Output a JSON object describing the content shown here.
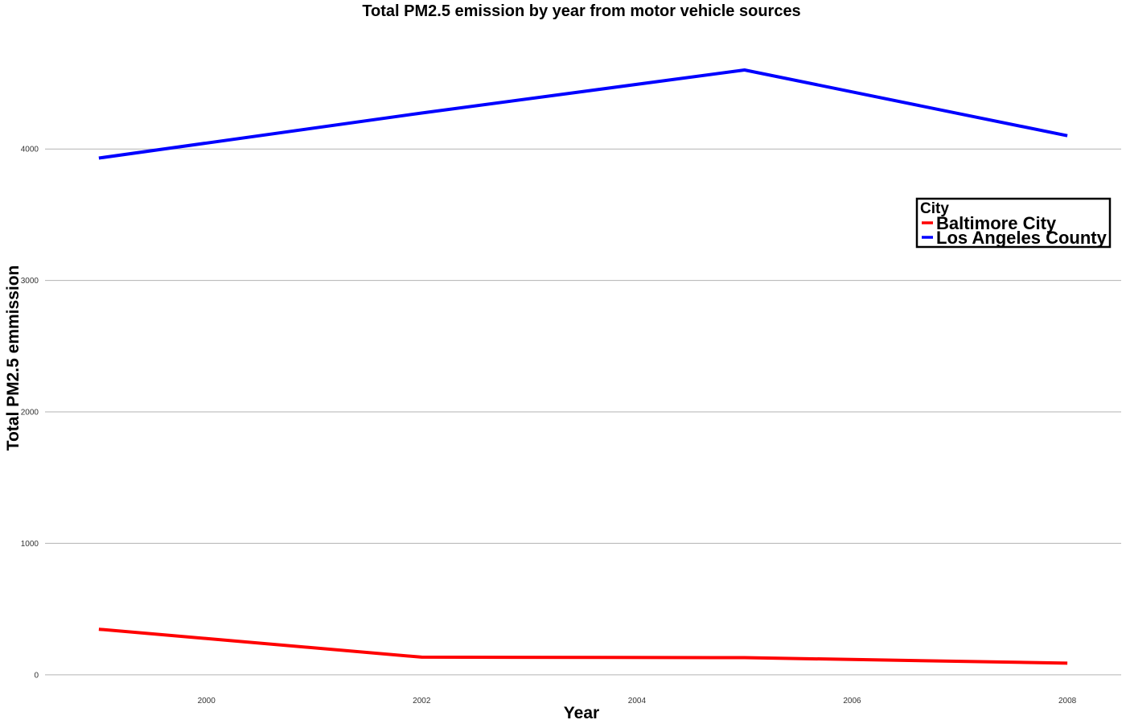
{
  "chart_data": {
    "type": "line",
    "title": "Total PM2.5 emission by year from motor vehicle sources",
    "xlabel": "Year",
    "ylabel": "Total PM2.5 emmission",
    "x": [
      1999,
      2002,
      2005,
      2008
    ],
    "xticks": [
      2000,
      2002,
      2004,
      2006,
      2008
    ],
    "xlim": [
      1998.5,
      2008.5
    ],
    "yticks": [
      0,
      1000,
      2000,
      3000,
      4000
    ],
    "ylim": [
      -50,
      4950
    ],
    "grid": true,
    "legend": {
      "title": "City",
      "placement": "right"
    },
    "series": [
      {
        "name": "Baltimore City",
        "color": "#ff0000",
        "values": [
          346.82,
          134.31,
          130.43,
          88.28
        ]
      },
      {
        "name": "Los Angeles County",
        "color": "#0000ff",
        "values": [
          3931.12,
          4274.03,
          4601.42,
          4101.32
        ]
      }
    ]
  }
}
